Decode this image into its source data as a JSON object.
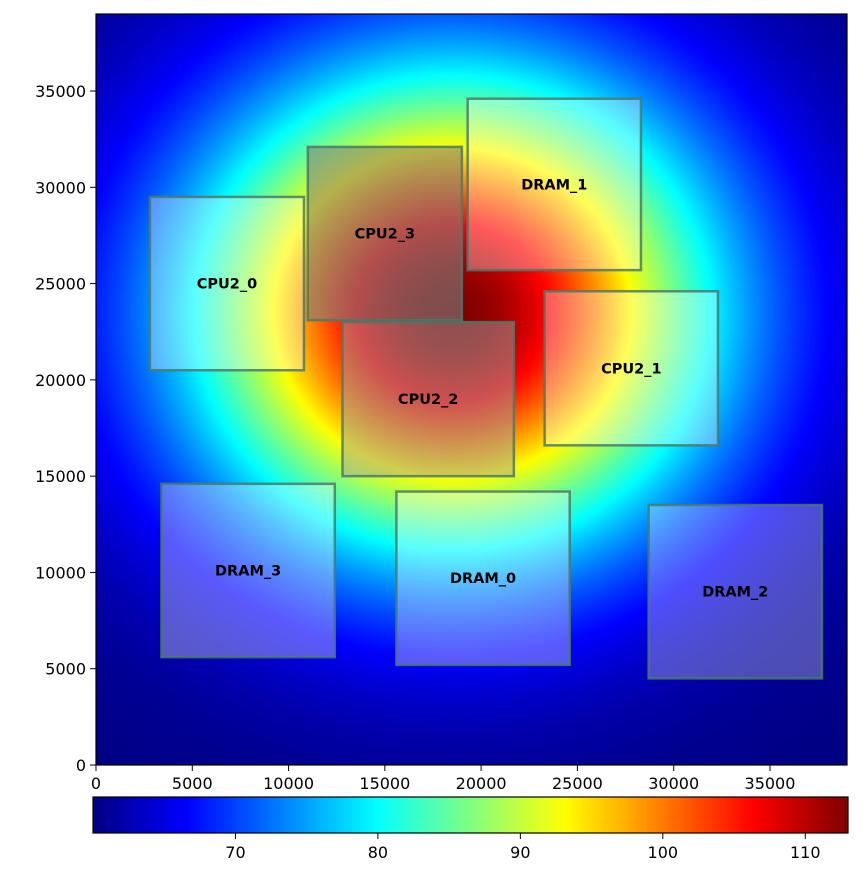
{
  "chart_data": {
    "type": "heatmap",
    "title": "",
    "xlabel": "",
    "ylabel": "",
    "xlim": [
      0,
      39000
    ],
    "ylim": [
      0,
      39000
    ],
    "x_ticks": [
      0,
      5000,
      10000,
      15000,
      20000,
      25000,
      30000,
      35000
    ],
    "y_ticks": [
      0,
      5000,
      10000,
      15000,
      20000,
      25000,
      30000,
      35000
    ],
    "x_tick_labels": [
      "0",
      "5000",
      "10000",
      "15000",
      "20000",
      "25000",
      "30000",
      "35000"
    ],
    "y_tick_labels": [
      "0",
      "5000",
      "10000",
      "15000",
      "20000",
      "25000",
      "30000",
      "35000"
    ],
    "colormap": "jet",
    "colorbar": {
      "orientation": "horizontal",
      "placement": "bottom",
      "range": [
        60,
        113
      ],
      "ticks": [
        70,
        80,
        90,
        100,
        110
      ],
      "tick_labels": [
        "70",
        "80",
        "90",
        "100",
        "110"
      ]
    },
    "heat_field": {
      "peak_value": 113,
      "min_value": 60,
      "peak_center": [
        18500,
        23500
      ]
    },
    "blocks": [
      {
        "name": "CPU2_0",
        "x0": 2800,
        "y0": 20500,
        "x1": 10800,
        "y1": 29500,
        "fill_color": "#ffffff",
        "fill_opacity": 0.35
      },
      {
        "name": "CPU2_3",
        "x0": 11000,
        "y0": 23100,
        "x1": 19000,
        "y1": 32100,
        "fill_color": "#808080",
        "fill_opacity": 0.6
      },
      {
        "name": "DRAM_1",
        "x0": 19300,
        "y0": 25700,
        "x1": 28300,
        "y1": 34600,
        "fill_color": "#ffffff",
        "fill_opacity": 0.35
      },
      {
        "name": "CPU2_2",
        "x0": 12800,
        "y0": 15000,
        "x1": 21700,
        "y1": 23000,
        "fill_color": "#a0a0a0",
        "fill_opacity": 0.5
      },
      {
        "name": "CPU2_1",
        "x0": 23300,
        "y0": 16600,
        "x1": 32300,
        "y1": 24600,
        "fill_color": "#ffffff",
        "fill_opacity": 0.35
      },
      {
        "name": "DRAM_3",
        "x0": 3400,
        "y0": 5600,
        "x1": 12400,
        "y1": 14600,
        "fill_color": "#ffffff",
        "fill_opacity": 0.35
      },
      {
        "name": "DRAM_0",
        "x0": 15600,
        "y0": 5200,
        "x1": 24600,
        "y1": 14200,
        "fill_color": "#ffffff",
        "fill_opacity": 0.35
      },
      {
        "name": "DRAM_2",
        "x0": 28700,
        "y0": 4500,
        "x1": 37700,
        "y1": 13500,
        "fill_color": "#ffffff",
        "fill_opacity": 0.3
      }
    ]
  }
}
